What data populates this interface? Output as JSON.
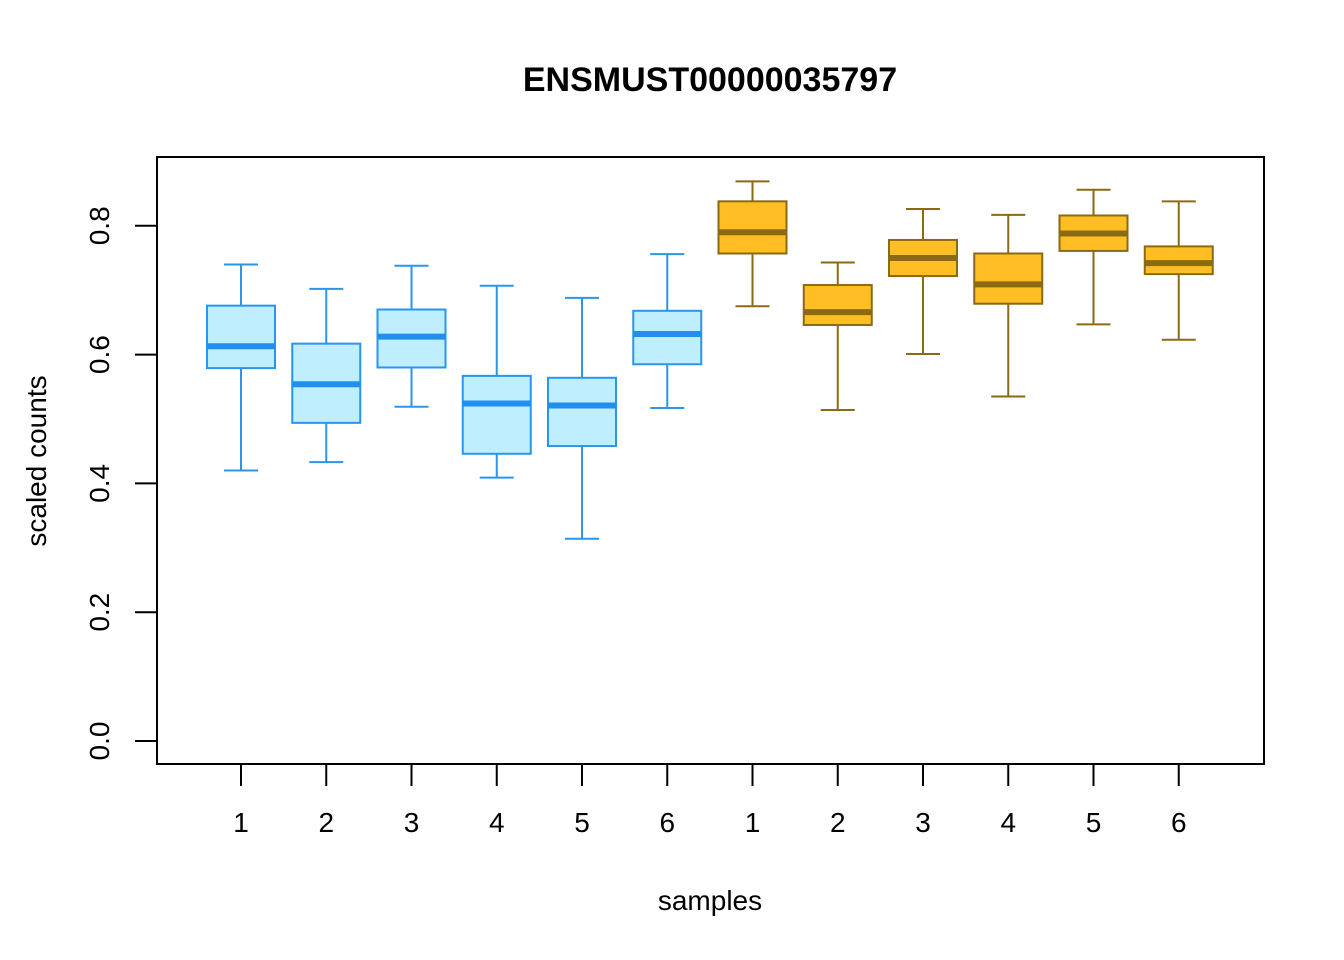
{
  "chart_data": {
    "type": "box",
    "title": "ENSMUST00000035797",
    "xlabel": "samples",
    "ylabel": "scaled counts",
    "ylim": [
      0,
      0.9
    ],
    "yticks": [
      "0.0",
      "0.2",
      "0.4",
      "0.6",
      "0.8"
    ],
    "ytick_values": [
      0.0,
      0.2,
      0.4,
      0.6,
      0.8
    ],
    "categories": [
      "1",
      "2",
      "3",
      "4",
      "5",
      "6",
      "1",
      "2",
      "3",
      "4",
      "5",
      "6"
    ],
    "grid": false,
    "groups": [
      {
        "fill": "#bfeeff",
        "stroke": "#2b95ec",
        "median_color": "#1f8ff0",
        "members": [
          0,
          1,
          2,
          3,
          4,
          5
        ]
      },
      {
        "fill": "#ffbf24",
        "stroke": "#8a6a12",
        "median_color": "#8a6a12",
        "members": [
          6,
          7,
          8,
          9,
          10,
          11
        ]
      }
    ],
    "boxes": [
      {
        "whisker_low": 0.42,
        "q1": 0.579,
        "median": 0.613,
        "q3": 0.676,
        "whisker_high": 0.74
      },
      {
        "whisker_low": 0.433,
        "q1": 0.494,
        "median": 0.554,
        "q3": 0.617,
        "whisker_high": 0.702
      },
      {
        "whisker_low": 0.519,
        "q1": 0.58,
        "median": 0.628,
        "q3": 0.67,
        "whisker_high": 0.738
      },
      {
        "whisker_low": 0.409,
        "q1": 0.446,
        "median": 0.524,
        "q3": 0.567,
        "whisker_high": 0.707
      },
      {
        "whisker_low": 0.314,
        "q1": 0.458,
        "median": 0.521,
        "q3": 0.564,
        "whisker_high": 0.688
      },
      {
        "whisker_low": 0.517,
        "q1": 0.585,
        "median": 0.632,
        "q3": 0.668,
        "whisker_high": 0.756
      },
      {
        "whisker_low": 0.675,
        "q1": 0.757,
        "median": 0.79,
        "q3": 0.838,
        "whisker_high": 0.869
      },
      {
        "whisker_low": 0.514,
        "q1": 0.646,
        "median": 0.666,
        "q3": 0.708,
        "whisker_high": 0.743
      },
      {
        "whisker_low": 0.601,
        "q1": 0.722,
        "median": 0.75,
        "q3": 0.778,
        "whisker_high": 0.826
      },
      {
        "whisker_low": 0.535,
        "q1": 0.679,
        "median": 0.709,
        "q3": 0.757,
        "whisker_high": 0.817
      },
      {
        "whisker_low": 0.647,
        "q1": 0.761,
        "median": 0.788,
        "q3": 0.816,
        "whisker_high": 0.856
      },
      {
        "whisker_low": 0.623,
        "q1": 0.725,
        "median": 0.742,
        "q3": 0.768,
        "whisker_high": 0.838
      }
    ]
  }
}
